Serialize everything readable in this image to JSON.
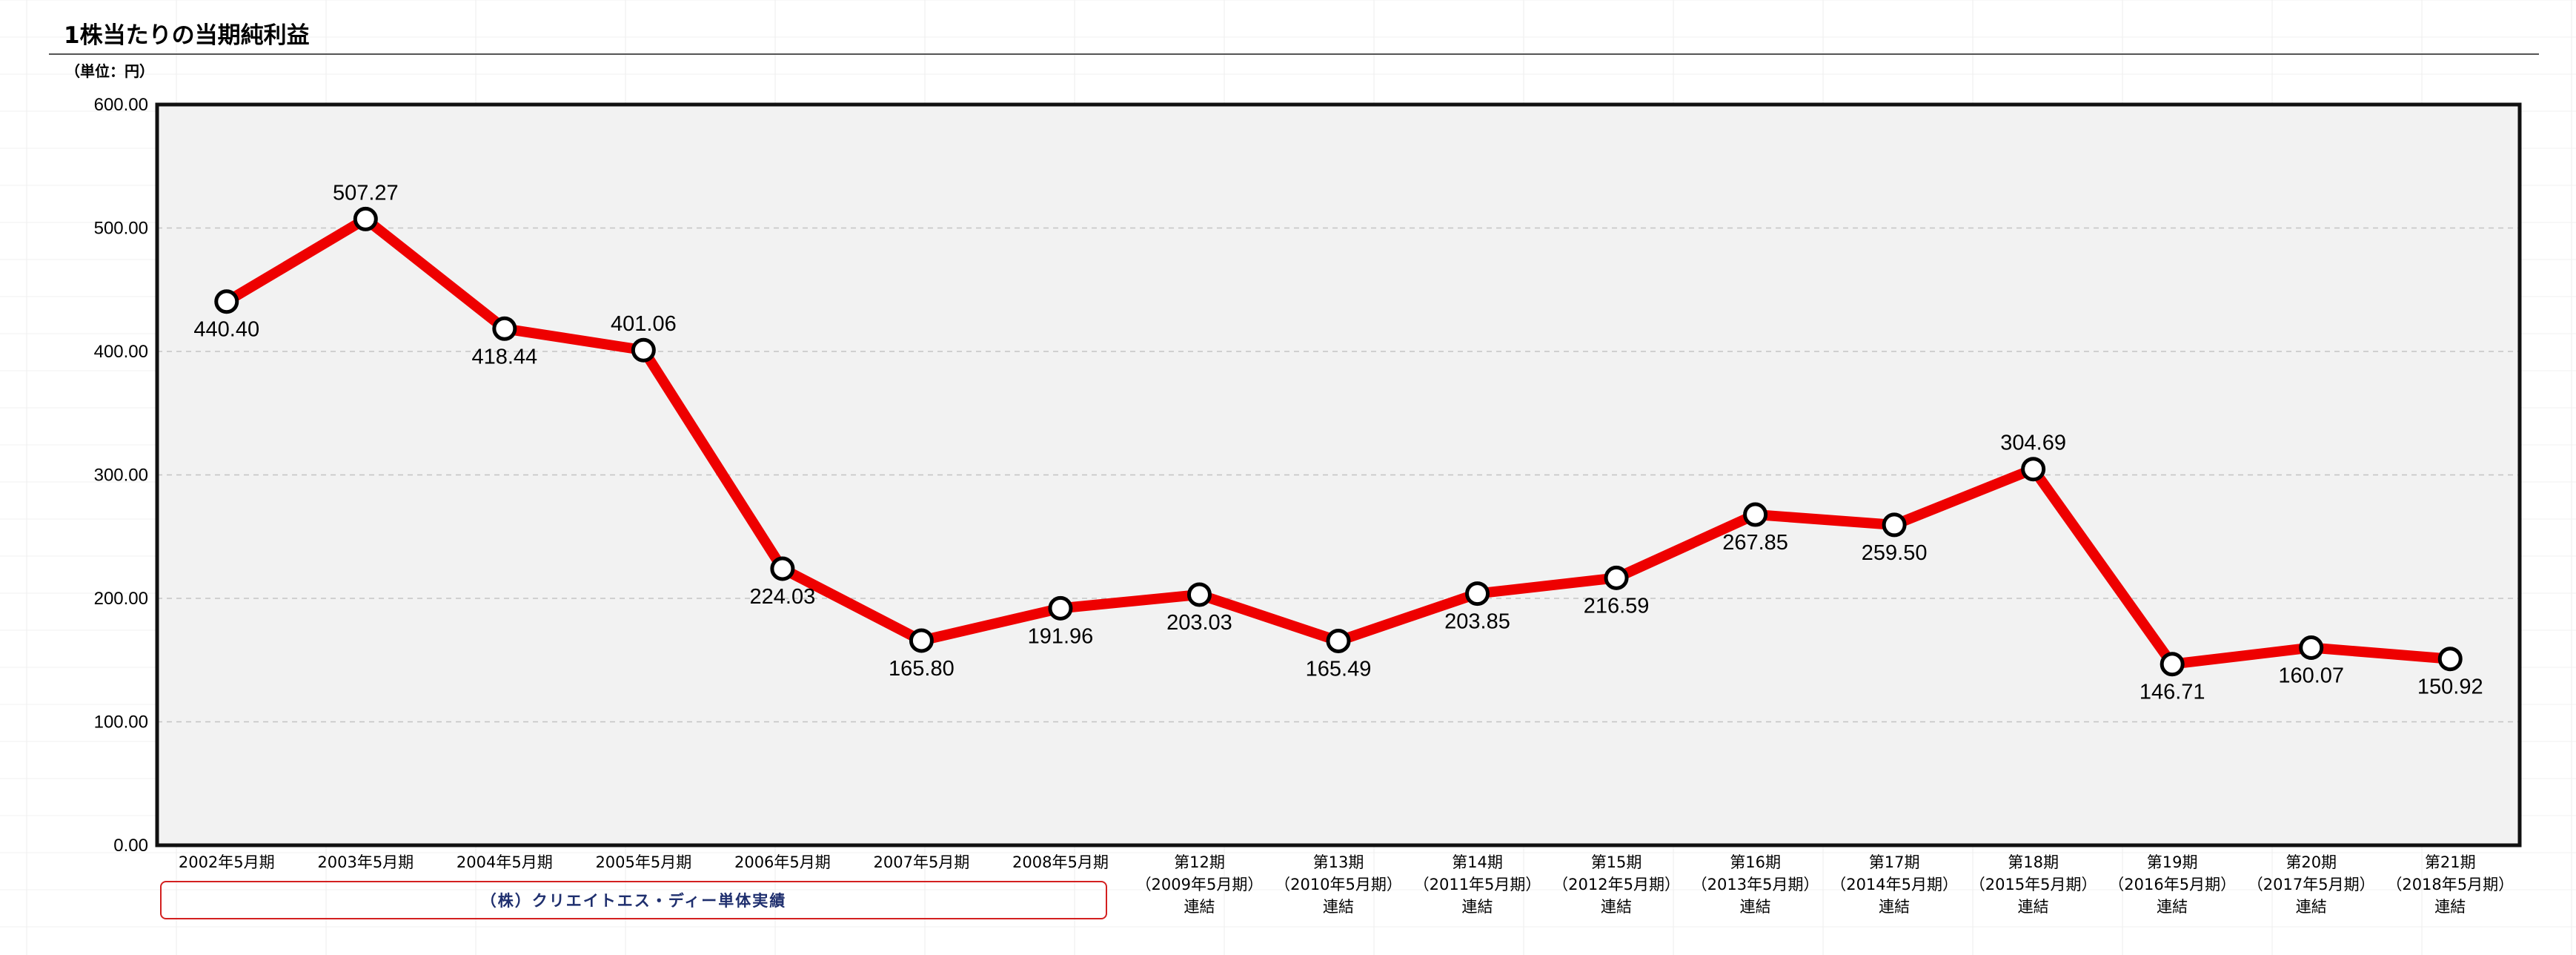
{
  "header": {
    "title": "1株当たりの当期純利益",
    "unit_label": "（単位：円）"
  },
  "footer": {
    "company_label": "（株）クリエイトエス・ディー単体実績"
  },
  "colors": {
    "line": "#ee0000",
    "plot_background": "#f2f2f2",
    "marker_fill": "#ffffff",
    "marker_stroke": "#000000",
    "company_box_border": "#d32020",
    "company_box_text": "#1f2f6e"
  },
  "chart_data": {
    "type": "line",
    "title": "1株当たりの当期純利益",
    "ylabel": "（単位：円）",
    "ylim": [
      0,
      600
    ],
    "yticks": [
      "0.00",
      "100.00",
      "200.00",
      "300.00",
      "400.00",
      "500.00",
      "600.00"
    ],
    "grid": true,
    "categories": [
      [
        "2002年5月期"
      ],
      [
        "2003年5月期"
      ],
      [
        "2004年5月期"
      ],
      [
        "2005年5月期"
      ],
      [
        "2006年5月期"
      ],
      [
        "2007年5月期"
      ],
      [
        "2008年5月期"
      ],
      [
        "第12期",
        "（2009年5月期）",
        "連結"
      ],
      [
        "第13期",
        "（2010年5月期）",
        "連結"
      ],
      [
        "第14期",
        "（2011年5月期）",
        "連結"
      ],
      [
        "第15期",
        "（2012年5月期）",
        "連結"
      ],
      [
        "第16期",
        "（2013年5月期）",
        "連結"
      ],
      [
        "第17期",
        "（2014年5月期）",
        "連結"
      ],
      [
        "第18期",
        "（2015年5月期）",
        "連結"
      ],
      [
        "第19期",
        "（2016年5月期）",
        "連結"
      ],
      [
        "第20期",
        "（2017年5月期）",
        "連結"
      ],
      [
        "第21期",
        "（2018年5月期）",
        "連結"
      ]
    ],
    "values": [
      440.4,
      507.27,
      418.44,
      401.06,
      224.03,
      165.8,
      191.96,
      203.03,
      165.49,
      203.85,
      216.59,
      267.85,
      259.5,
      304.69,
      146.71,
      160.07,
      150.92
    ],
    "labels": [
      "440.40",
      "507.27",
      "418.44",
      "401.06",
      "224.03",
      "165.80",
      "191.96",
      "203.03",
      "165.49",
      "203.85",
      "216.59",
      "267.85",
      "259.50",
      "304.69",
      "146.71",
      "160.07",
      "150.92"
    ],
    "label_positions": [
      "below",
      "above",
      "below",
      "above",
      "below",
      "below",
      "below",
      "below",
      "below",
      "below",
      "below",
      "below",
      "below",
      "above",
      "below",
      "below",
      "below"
    ]
  }
}
